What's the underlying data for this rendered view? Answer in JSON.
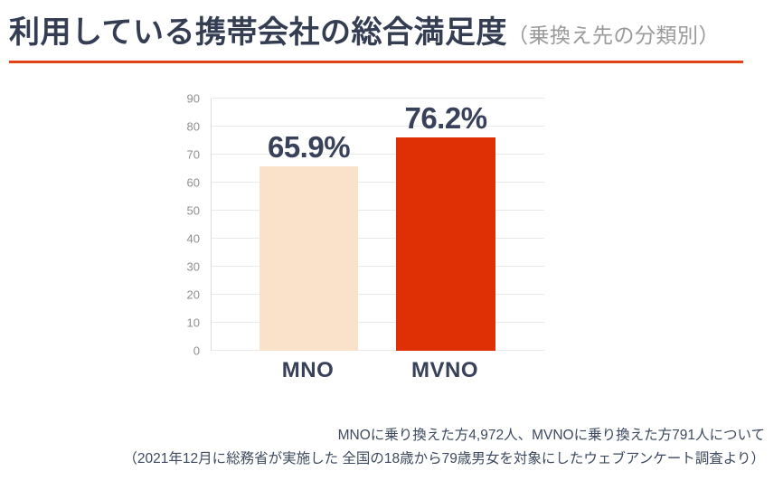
{
  "header": {
    "title": "利用している携帯会社の総合満足度",
    "subtitle": "（乗換え先の分類別）"
  },
  "chart_data": {
    "type": "bar",
    "categories": [
      "MNO",
      "MVNO"
    ],
    "values": [
      65.9,
      76.2
    ],
    "value_labels": [
      "65.9%",
      "76.2%"
    ],
    "bar_colors": [
      "#FAE1C9",
      "#DF2F05"
    ],
    "ylim": [
      0,
      90
    ],
    "yticks": [
      0,
      10,
      20,
      30,
      40,
      50,
      60,
      70,
      80,
      90
    ],
    "grid": true,
    "legend": "none",
    "title": "",
    "xlabel": "",
    "ylabel": ""
  },
  "footer": {
    "line1": "MNOに乗り換えた方4,972人、MVNOに乗り換えた方791人について",
    "line2": "（2021年12月に総務省が実施した 全国の18歳から79歳男女を対象にしたウェブアンケート調査より）"
  },
  "colors": {
    "accent_underline": "#E04315",
    "title_text": "#353D52",
    "subtitle_text": "#9A9A9A",
    "label_text": "#39415A",
    "axis_text": "#8F8F8F",
    "gridline": "#EAEAEA",
    "axis_line": "#DCDCDC",
    "footer_text": "#3E4A5F"
  }
}
